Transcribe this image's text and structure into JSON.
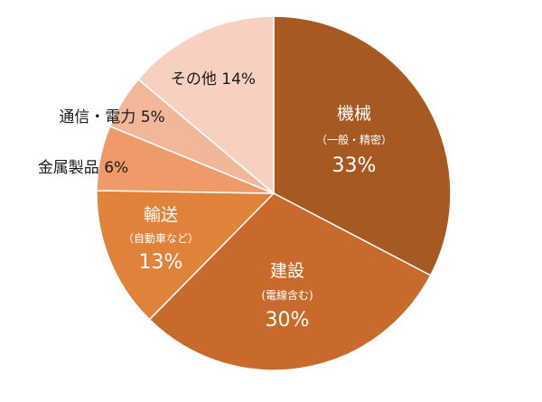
{
  "chart_data": {
    "type": "pie",
    "title": "",
    "legend": "none",
    "slices": [
      {
        "name": "機械",
        "sub": "（一般・精密）",
        "value": 33,
        "pct_label": "33%",
        "color": "#A65A22",
        "label_style": "inside"
      },
      {
        "name": "建設",
        "sub": "(電線含む)",
        "value": 30,
        "pct_label": "30%",
        "color": "#C86A2C",
        "label_style": "inside"
      },
      {
        "name": "輸送",
        "sub": "（自動車など）",
        "value": 13,
        "pct_label": "13%",
        "color": "#E0823A",
        "label_style": "inside"
      },
      {
        "name": "金属製品",
        "sub": "",
        "value": 6,
        "pct_label": "6%",
        "color": "#EE9A69",
        "label_style": "outside"
      },
      {
        "name": "通信・電力",
        "sub": "",
        "value": 5,
        "pct_label": "5%",
        "color": "#F2B699",
        "label_style": "outside"
      },
      {
        "name": "その他",
        "sub": "",
        "value": 14,
        "pct_label": "14%",
        "color": "#F7D0C0",
        "label_style": "outside"
      }
    ]
  }
}
